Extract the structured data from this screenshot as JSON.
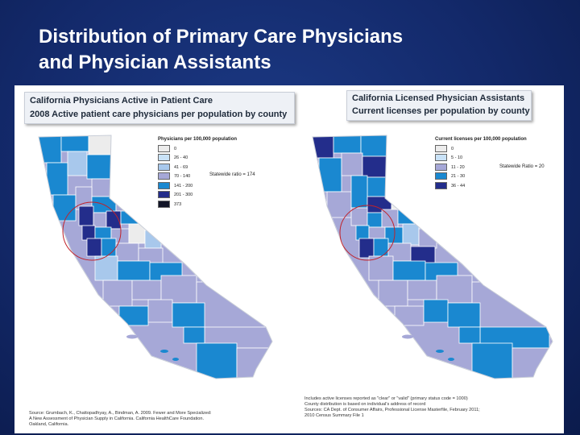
{
  "slide": {
    "title_line1": "Distribution of Primary Care Physicians",
    "title_line2": "and Physician Assistants"
  },
  "left_map": {
    "title": "California Physicians Active in Patient Care",
    "subtitle": "2008 Active patient care physicians per population by county",
    "legend_title": "Physicians per 100,000 population",
    "legend_items": [
      {
        "label": "0",
        "color": "#ececec"
      },
      {
        "label": "26 - 40",
        "color": "#c9e2f7"
      },
      {
        "label": "41 - 69",
        "color": "#a8c8ec"
      },
      {
        "label": "70 - 140",
        "color": "#a6a8d7"
      },
      {
        "label": "141 - 200",
        "color": "#1a88d0"
      },
      {
        "label": "201 - 300",
        "color": "#232d8b"
      },
      {
        "label": "373",
        "color": "#111427"
      }
    ],
    "statewide": "Statewide ratio = 174",
    "source_line1": "Source:  Grumbach, K., Chattopadhyay, A., Bindman, A. 2009. Fewer and More Specialized:",
    "source_line2": "A New Assessment of Physician Supply in California. California HealthCare Foundation.",
    "source_line3": "Oakland, California."
  },
  "right_map": {
    "title": "California Licensed Physician Assistants",
    "subtitle": "Current licenses per population by county",
    "legend_title": "Current licenses per 100,000 population",
    "legend_items": [
      {
        "label": "0",
        "color": "#ececec"
      },
      {
        "label": "5 - 10",
        "color": "#c9e2f7"
      },
      {
        "label": "11 - 20",
        "color": "#a6a8d7"
      },
      {
        "label": "21 - 30",
        "color": "#1a88d0"
      },
      {
        "label": "36 - 44",
        "color": "#232d8b"
      }
    ],
    "statewide": "Statewide Ratio = 20",
    "note_line1": "Includes active licenses reported as \"clear\" or \"valid\" (primary status code = 1000)",
    "note_line2": "County distribution is based on individual's address of record",
    "note_line3": "Sources:  CA Dept. of Consumer Affairs, Professional License Masterfile, February 2011;",
    "note_line4": "2010 Census Summary File 1"
  }
}
